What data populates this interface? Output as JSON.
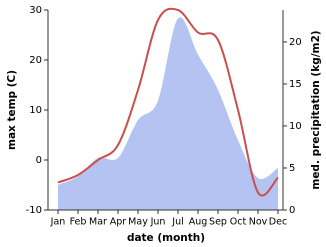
{
  "chart_data": {
    "type": "line",
    "x_label": "date (month)",
    "y_label": "max temp (C)",
    "y2_label": "med. precipitation (kg/m2)",
    "categories": [
      "Jan",
      "Feb",
      "Mar",
      "Apr",
      "May",
      "Jun",
      "Jul",
      "Aug",
      "Sep",
      "Oct",
      "Nov",
      "Dec"
    ],
    "series": [
      {
        "name": "max temp",
        "color": "#c8504f",
        "type": "line",
        "values": [
          -4.5,
          -3,
          0,
          3,
          14,
          28,
          30,
          25.5,
          24,
          10,
          -6.5,
          -3.5
        ]
      },
      {
        "name": "med. precipitation",
        "color": "#b4c3f2",
        "type": "area",
        "axis": "y2",
        "values": [
          3,
          4,
          6.2,
          6.2,
          10.7,
          13,
          22.8,
          18.5,
          14.3,
          8.3,
          3.8,
          5
        ]
      }
    ],
    "ylim": [
      -10,
      30
    ],
    "yticks": [
      -10,
      0,
      10,
      20,
      30
    ],
    "y2lim": [
      0,
      23.8
    ],
    "y2ticks": [
      0,
      5,
      10,
      15,
      20
    ]
  }
}
